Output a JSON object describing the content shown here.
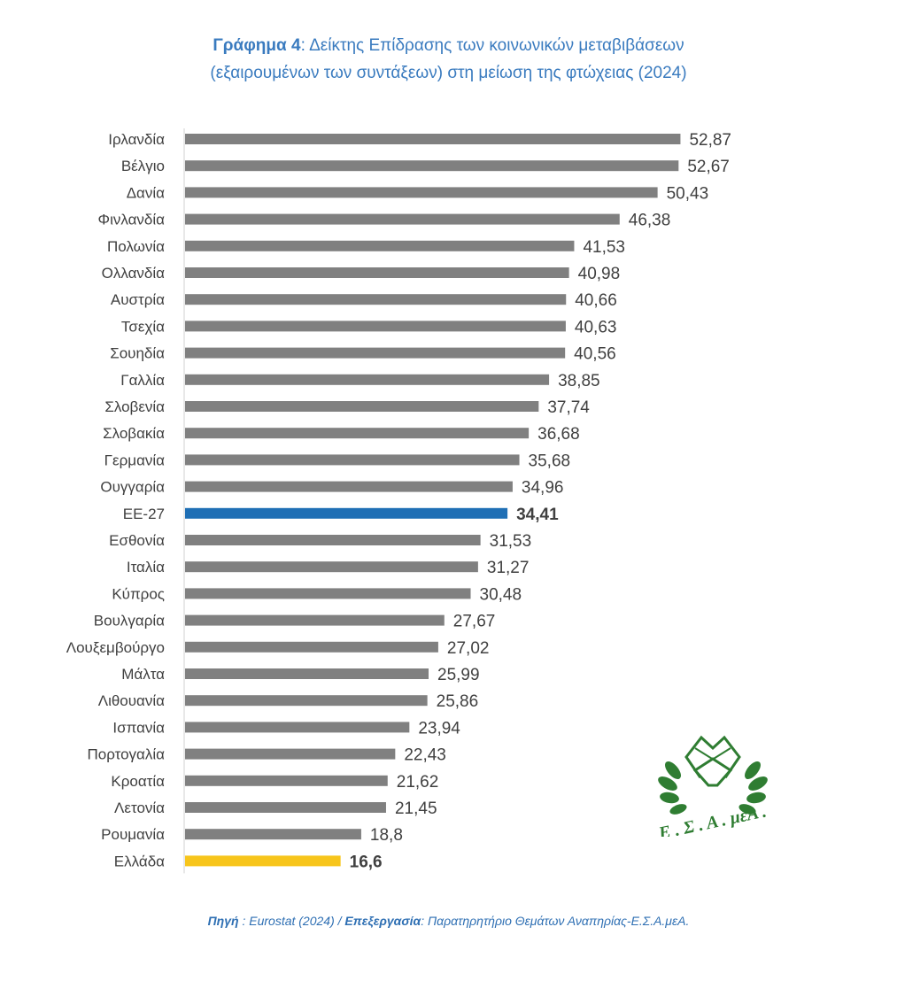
{
  "title": {
    "bold": "Γράφημα 4",
    "line1_rest": ": Δείκτης Επίδρασης των κοινωνικών μεταβιβάσεων",
    "line2": "(εξαιρουμένων των συντάξεων) στη μείωση της φτώχειας (2024)"
  },
  "source": {
    "label1": "Πηγή",
    "text1": " : Eurostat (2024) / ",
    "label2": "Επεξεργασία",
    "text2": ": Παρατηρητήριο Θεμάτων Αναπηρίας-Ε.Σ.Α.μεΑ."
  },
  "logo": {
    "text": "Ε . Σ . Α . μεΑ .",
    "icon": "handshake-wreath-icon"
  },
  "colors": {
    "default": "#808080",
    "eu": "#1f6fb5",
    "greece": "#f7c51b",
    "label": "#404040"
  },
  "chart_data": {
    "type": "bar",
    "orientation": "horizontal",
    "xlim": [
      0,
      53
    ],
    "grid": false,
    "categories": [
      "Ιρλανδία",
      "Βέλγιο",
      "Δανία",
      "Φινλανδία",
      "Πολωνία",
      "Ολλανδία",
      "Αυστρία",
      "Τσεχία",
      "Σουηδία",
      "Γαλλία",
      "Σλοβενία",
      "Σλοβακία",
      "Γερμανία",
      "Ουγγαρία",
      "ΕΕ-27",
      "Εσθονία",
      "Ιταλία",
      "Κύπρος",
      "Βουλγαρία",
      "Λουξεμβούργο",
      "Μάλτα",
      "Λιθουανία",
      "Ισπανία",
      "Πορτογαλία",
      "Κροατία",
      "Λετονία",
      "Ρουμανία",
      "Ελλάδα"
    ],
    "values": [
      52.87,
      52.67,
      50.43,
      46.38,
      41.53,
      40.98,
      40.66,
      40.63,
      40.56,
      38.85,
      37.74,
      36.68,
      35.68,
      34.96,
      34.41,
      31.53,
      31.27,
      30.48,
      27.67,
      27.02,
      25.99,
      25.86,
      23.94,
      22.43,
      21.62,
      21.45,
      18.8,
      16.6
    ],
    "value_labels": [
      "52,87",
      "52,67",
      "50,43",
      "46,38",
      "41,53",
      "40,98",
      "40,66",
      "40,63",
      "40,56",
      "38,85",
      "37,74",
      "36,68",
      "35,68",
      "34,96",
      "34,41",
      "31,53",
      "31,27",
      "30,48",
      "27,67",
      "27,02",
      "25,99",
      "25,86",
      "23,94",
      "22,43",
      "21,62",
      "21,45",
      "18,8",
      "16,6"
    ],
    "highlight": {
      "ΕΕ-27": "eu",
      "Ελλάδα": "greece"
    }
  }
}
